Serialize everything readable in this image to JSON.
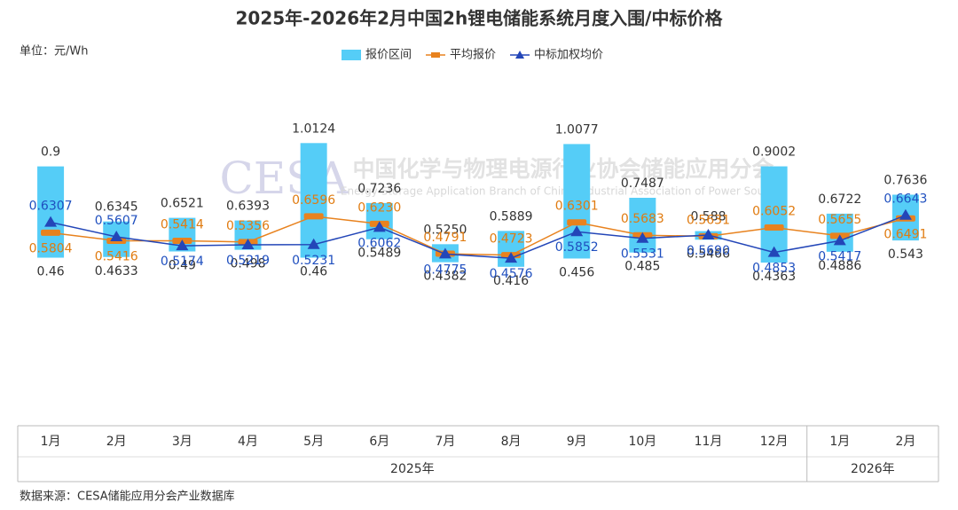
{
  "chart_data": {
    "type": "range-line",
    "title": "2025年-2026年2月中国2h锂电储能系统月度入围/中标价格",
    "unit_label": "单位：元/Wh",
    "source": "数据来源：CESA储能应用分会产业数据库",
    "watermark": {
      "logo": "CESA",
      "name": "中国化学与物理电源行业协会储能应用分会",
      "name_en": "Energy Storage Application Branch of China Industrial Association of Power Sources"
    },
    "category_groups": [
      {
        "label": "2025年",
        "categories": [
          "1月",
          "2月",
          "3月",
          "4月",
          "5月",
          "6月",
          "7月",
          "8月",
          "9月",
          "10月",
          "11月",
          "12月"
        ]
      },
      {
        "label": "2026年",
        "categories": [
          "1月",
          "2月"
        ]
      }
    ],
    "ylim": [
      -0.35,
      1.36
    ],
    "series": [
      {
        "name": "报价区间",
        "color": "#55cdf7",
        "label_color": "#333333",
        "low": [
          0.46,
          0.4633,
          0.49,
          0.498,
          0.46,
          0.5489,
          0.4382,
          0.416,
          0.456,
          0.485,
          0.5466,
          0.4363,
          0.4886,
          0.543
        ],
        "low_labels": [
          "0.46",
          "0.4633",
          "0.49",
          "0.498",
          "0.46",
          "0.5489",
          "0.4382",
          "0.416",
          "0.456",
          "0.485",
          "0.5466",
          "0.4363",
          "0.4886",
          "0.543"
        ],
        "high": [
          0.9,
          0.6345,
          0.6521,
          0.6393,
          1.0124,
          0.7236,
          0.525,
          0.5889,
          1.0077,
          0.7487,
          0.588,
          0.9002,
          0.6722,
          0.7636
        ],
        "high_labels": [
          "0.9",
          "0.6345",
          "0.6521",
          "0.6393",
          "1.0124",
          "0.7236",
          "0.5250",
          "0.5889",
          "1.0077",
          "0.7487",
          "0.588",
          "0.9002",
          "0.6722",
          "0.7636"
        ]
      },
      {
        "name": "平均报价",
        "color": "#e8821e",
        "label_color": "#e07b10",
        "values": [
          0.5804,
          0.5416,
          0.5414,
          0.5356,
          0.6596,
          0.623,
          0.4791,
          0.4723,
          0.6301,
          0.5683,
          0.5631,
          0.6052,
          0.5655,
          0.6491
        ],
        "value_labels": [
          "0.5804",
          "0.5416",
          "0.5414",
          "0.5356",
          "0.6596",
          "0.6230",
          "0.4791",
          "0.4723",
          "0.6301",
          "0.5683",
          "0.5631",
          "0.6052",
          "0.5655",
          "0.6491"
        ]
      },
      {
        "name": "中标加权均价",
        "color": "#2346b8",
        "label_color": "#1f4fbf",
        "values": [
          0.6307,
          0.5607,
          0.5174,
          0.5219,
          0.5231,
          0.6062,
          0.4775,
          0.4576,
          0.5852,
          0.5531,
          0.569,
          0.4853,
          0.5417,
          0.6643
        ],
        "value_labels": [
          "0.6307",
          "0.5607",
          "0.5174",
          "0.5219",
          "0.5231",
          "0.6062",
          "0.4775",
          "0.4576",
          "0.5852",
          "0.5531",
          "0.5690",
          "0.4853",
          "0.5417",
          "0.6643"
        ]
      }
    ]
  }
}
